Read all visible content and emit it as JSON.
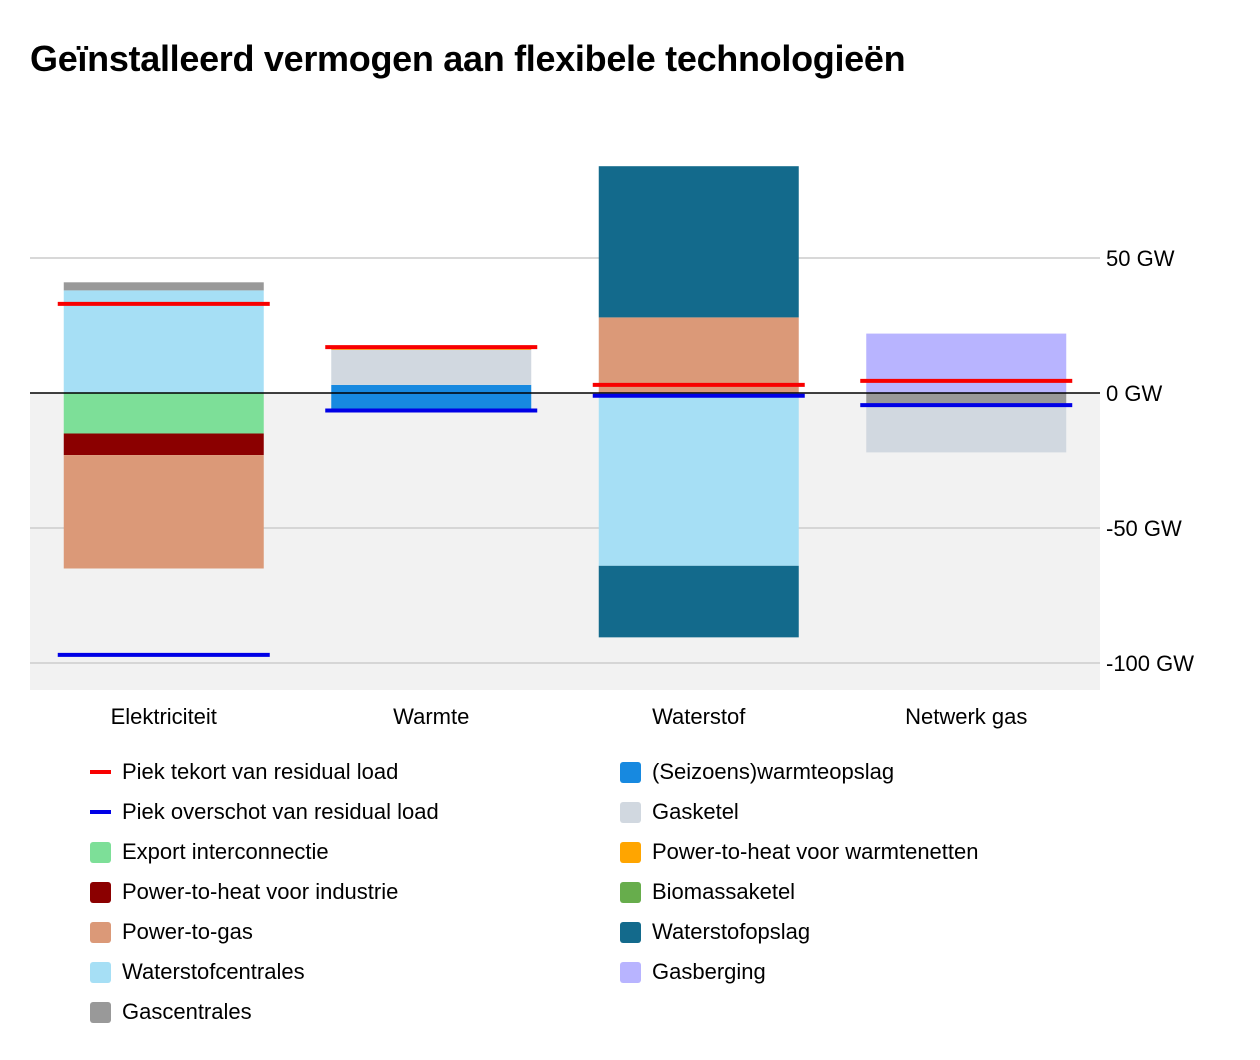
{
  "chart_data": {
    "type": "bar",
    "stacked": true,
    "title": "Geïnstalleerd vermogen aan flexibele technologieën",
    "categories": [
      "Elektriciteit",
      "Warmte",
      "Waterstof",
      "Netwerk gas"
    ],
    "y_ticks": [
      {
        "value": 50,
        "label": "50 GW"
      },
      {
        "value": 0,
        "label": "0 GW"
      },
      {
        "value": -50,
        "label": "-50 GW"
      },
      {
        "value": -100,
        "label": "-100 GW"
      }
    ],
    "ylim": [
      -110,
      85
    ],
    "grid": true,
    "legend_position": "bottom",
    "negative_region_shaded": true,
    "series": [
      {
        "name": "Export interconnectie",
        "color": "#7ddf98",
        "values": [
          -15,
          0,
          0,
          0
        ]
      },
      {
        "name": "Power-to-heat voor industrie",
        "color": "#8b0000",
        "values": [
          -8,
          0,
          0,
          0
        ]
      },
      {
        "name": "Power-to-gas",
        "color": "#db9978",
        "values": [
          -42,
          0,
          28,
          0
        ]
      },
      {
        "name": "Waterstofcentrales",
        "color": "#a6dff5",
        "values": [
          38,
          0,
          -64,
          0
        ]
      },
      {
        "name": "Gascentrales",
        "color": "#999999",
        "values": [
          3,
          0,
          0,
          -5
        ]
      },
      {
        "name": "(Seizoens)warmteopslag",
        "color": "#1789e0",
        "values": [
          0,
          3,
          0,
          0
        ]
      },
      {
        "name": "(Seizoens)warmteopslag",
        "color": "#1789e0",
        "values": [
          0,
          -6,
          0,
          0
        ]
      },
      {
        "name": "Gasketel",
        "color": "#d1d8e0",
        "values": [
          0,
          13,
          0,
          -17
        ]
      },
      {
        "name": "Power-to-heat voor warmtenetten",
        "color": "#ffa500",
        "values": [
          0,
          1,
          0,
          0
        ]
      },
      {
        "name": "Biomassaketel",
        "color": "#67ad4c",
        "values": [
          0,
          0,
          0,
          0
        ]
      },
      {
        "name": "Waterstofopslag",
        "color": "#136a8c",
        "values": [
          0,
          0,
          56,
          0
        ]
      },
      {
        "name": "Waterstofopslag",
        "color": "#136a8c",
        "values": [
          0,
          0,
          -26.5,
          0
        ]
      },
      {
        "name": "Gasberging",
        "color": "#b8b4ff",
        "values": [
          0,
          0,
          0,
          22
        ]
      }
    ],
    "lines": [
      {
        "name": "Piek tekort van residual load",
        "color": "#f80000",
        "values": [
          33,
          17,
          3,
          4.5
        ]
      },
      {
        "name": "Piek overschot van residual load",
        "color": "#0000e6",
        "values": [
          -97,
          -6.5,
          -1,
          -4.5
        ]
      }
    ]
  },
  "legend": [
    {
      "label": "Piek tekort van residual load",
      "color": "#f80000",
      "kind": "line"
    },
    {
      "label": "Piek overschot van residual load",
      "color": "#0000e6",
      "kind": "line"
    },
    {
      "label": "Export interconnectie",
      "color": "#7ddf98",
      "kind": "box"
    },
    {
      "label": "Power-to-heat voor industrie",
      "color": "#8b0000",
      "kind": "box"
    },
    {
      "label": "Power-to-gas",
      "color": "#db9978",
      "kind": "box"
    },
    {
      "label": "Waterstofcentrales",
      "color": "#a6dff5",
      "kind": "box"
    },
    {
      "label": "Gascentrales",
      "color": "#999999",
      "kind": "box"
    },
    {
      "label": "(Seizoens)warmteopslag",
      "color": "#1789e0",
      "kind": "box"
    },
    {
      "label": "Gasketel",
      "color": "#d1d8e0",
      "kind": "box"
    },
    {
      "label": "Power-to-heat voor warmtenetten",
      "color": "#ffa500",
      "kind": "box"
    },
    {
      "label": "Biomassaketel",
      "color": "#67ad4c",
      "kind": "box"
    },
    {
      "label": "Waterstofopslag",
      "color": "#136a8c",
      "kind": "box"
    },
    {
      "label": "Gasberging",
      "color": "#b8b4ff",
      "kind": "box"
    }
  ]
}
